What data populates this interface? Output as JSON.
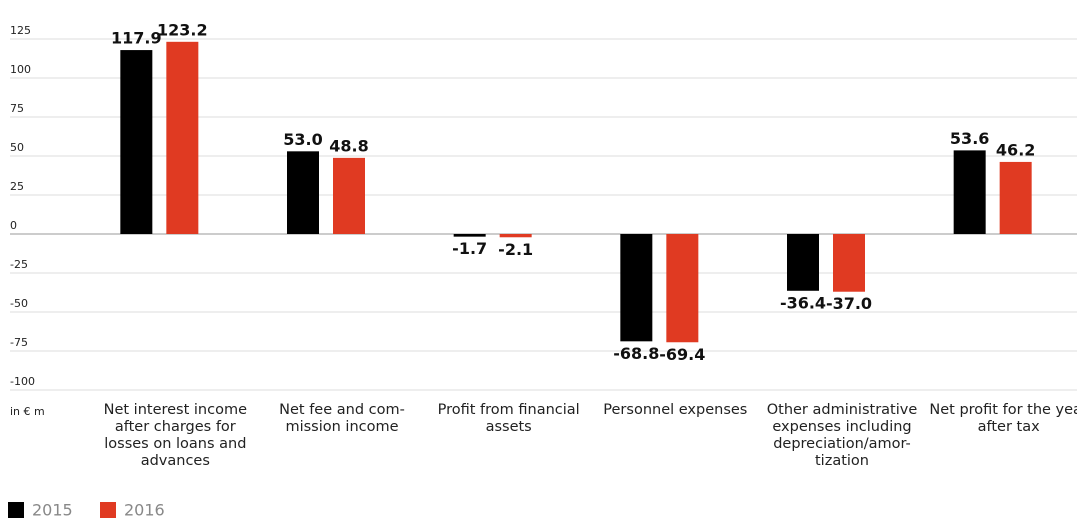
{
  "chart_data": {
    "type": "bar",
    "categories": [
      "Net interest income\nafter charges for\nlosses on loans and\nadvances",
      "Net fee and com-\nmission income",
      "Profit from financial\nassets",
      "Personnel expenses",
      "Other administrative\nexpenses including\ndepreciation/amor-\ntization",
      "Net profit for the year\nafter tax"
    ],
    "series": [
      {
        "name": "2015",
        "color": "#000000",
        "values": [
          117.9,
          53.0,
          -1.7,
          -68.8,
          -36.4,
          53.6
        ],
        "value_labels": [
          "117.9",
          "53.0",
          "-1.7",
          "-68.8",
          "-36.4",
          "53.6"
        ]
      },
      {
        "name": "2016",
        "color": "#e03a22",
        "values": [
          123.2,
          48.8,
          -2.1,
          -69.4,
          -37.0,
          46.2
        ],
        "value_labels": [
          "123.2",
          "48.8",
          "-2.1",
          "-69.4",
          "-37.0",
          "46.2"
        ]
      }
    ],
    "ylim": [
      -100,
      125
    ],
    "yticks": [
      -100,
      -75,
      -50,
      -25,
      0,
      25,
      50,
      75,
      100,
      125
    ],
    "y_unit_label": "in € m",
    "grid": true
  }
}
